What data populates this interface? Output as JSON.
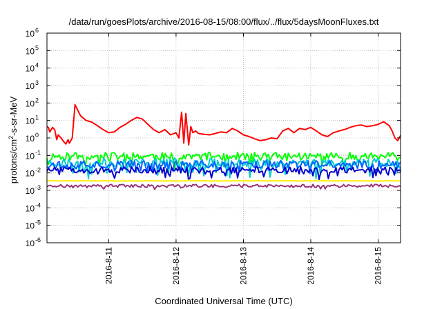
{
  "chart_data": {
    "type": "line",
    "title": "/data/run/goesPlots/archive/2016-08-15/08:00/flux/../flux/5daysMoonFluxes.txt",
    "xlabel": "Coordinated Universal Time (UTC)",
    "ylabel": "protons/cm²-s-sr-MeV",
    "yscale": "log",
    "ylim": [
      1e-06,
      1000000.0
    ],
    "xlim": [
      "2016-08-10 02:00",
      "2016-08-15 08:00"
    ],
    "grid": true,
    "x_ticks": [
      "2016-8-11",
      "2016-8-12",
      "2016-8-13",
      "2016-8-14",
      "2016-8-15"
    ],
    "y_ticks": [
      {
        "base": "10",
        "exp": "-6"
      },
      {
        "base": "10",
        "exp": "-5"
      },
      {
        "base": "10",
        "exp": "-4"
      },
      {
        "base": "10",
        "exp": "-3"
      },
      {
        "base": "10",
        "exp": "-2"
      },
      {
        "base": "10",
        "exp": "-1"
      },
      {
        "base": "10",
        "exp": "0"
      },
      {
        "base": "10",
        "exp": "1"
      },
      {
        "base": "10",
        "exp": "2"
      },
      {
        "base": "10",
        "exp": "3"
      },
      {
        "base": "10",
        "exp": "4"
      },
      {
        "base": "10",
        "exp": "5"
      },
      {
        "base": "10",
        "exp": "6"
      }
    ],
    "series": [
      {
        "color": "#ff0000",
        "style": "smooth",
        "x": [
          "2016-08-10 02:00",
          "2016-08-10 02:30",
          "2016-08-10 03:00",
          "2016-08-10 04:00",
          "2016-08-10 04:45",
          "2016-08-10 05:30",
          "2016-08-10 06:00",
          "2016-08-10 07:00",
          "2016-08-10 08:00",
          "2016-08-10 08:45",
          "2016-08-10 09:30",
          "2016-08-10 10:00",
          "2016-08-10 10:30",
          "2016-08-10 11:00",
          "2016-08-10 12:00",
          "2016-08-10 14:00",
          "2016-08-10 16:00",
          "2016-08-10 18:00",
          "2016-08-10 20:00",
          "2016-08-10 22:00",
          "2016-08-11 00:00",
          "2016-08-11 02:00",
          "2016-08-11 04:00",
          "2016-08-11 06:00",
          "2016-08-11 08:00",
          "2016-08-11 10:00",
          "2016-08-11 12:00",
          "2016-08-11 14:00",
          "2016-08-11 16:00",
          "2016-08-11 18:00",
          "2016-08-11 20:00",
          "2016-08-11 22:00",
          "2016-08-12 00:00",
          "2016-08-12 01:00",
          "2016-08-12 02:00",
          "2016-08-12 02:45",
          "2016-08-12 03:30",
          "2016-08-12 04:30",
          "2016-08-12 05:15",
          "2016-08-12 06:00",
          "2016-08-12 07:00",
          "2016-08-12 08:00",
          "2016-08-12 10:00",
          "2016-08-12 12:00",
          "2016-08-12 14:00",
          "2016-08-12 16:00",
          "2016-08-12 18:00",
          "2016-08-12 20:00",
          "2016-08-12 22:00",
          "2016-08-13 00:00",
          "2016-08-13 02:00",
          "2016-08-13 04:00",
          "2016-08-13 06:00",
          "2016-08-13 08:00",
          "2016-08-13 10:00",
          "2016-08-13 12:00",
          "2016-08-13 14:00",
          "2016-08-13 16:00",
          "2016-08-13 18:00",
          "2016-08-13 20:00",
          "2016-08-13 22:00",
          "2016-08-14 00:00",
          "2016-08-14 02:00",
          "2016-08-14 04:00",
          "2016-08-14 06:00",
          "2016-08-14 08:00",
          "2016-08-14 10:00",
          "2016-08-14 12:00",
          "2016-08-14 14:00",
          "2016-08-14 16:00",
          "2016-08-14 18:00",
          "2016-08-14 20:00",
          "2016-08-14 22:00",
          "2016-08-15 00:00",
          "2016-08-15 02:00",
          "2016-08-15 04:00",
          "2016-08-15 05:00",
          "2016-08-15 06:00",
          "2016-08-15 07:00",
          "2016-08-15 08:00"
        ],
        "y": [
          4.5,
          4.0,
          2.2,
          4.0,
          3.0,
          0.8,
          1.5,
          1.0,
          0.6,
          0.45,
          0.8,
          0.5,
          0.7,
          1.0,
          80.0,
          18.0,
          10.0,
          8.0,
          5.0,
          3.0,
          2.0,
          2.2,
          4.0,
          6.0,
          10.0,
          15.0,
          12.0,
          6.0,
          3.0,
          2.0,
          3.0,
          1.5,
          2.0,
          1.0,
          30.0,
          0.5,
          25.0,
          0.4,
          4.5,
          2.0,
          2.5,
          1.8,
          1.6,
          1.5,
          1.8,
          2.2,
          2.0,
          3.5,
          2.5,
          1.5,
          1.2,
          0.9,
          0.7,
          0.8,
          1.0,
          0.9,
          2.5,
          3.5,
          2.0,
          3.5,
          3.0,
          4.0,
          2.5,
          1.5,
          1.2,
          2.0,
          2.5,
          3.0,
          4.0,
          5.0,
          5.5,
          4.5,
          5.0,
          6.0,
          8.5,
          5.0,
          2.5,
          1.0,
          0.7,
          1.4
        ]
      },
      {
        "color": "#00ff00",
        "style": "jagged",
        "base": 0.09,
        "spread": 0.45,
        "dip": 0.55,
        "seed": 11
      },
      {
        "color": "#00cccc",
        "style": "jagged",
        "base": 0.04,
        "spread": 0.5,
        "dip": 0.8,
        "seed": 23
      },
      {
        "color": "#0066ff",
        "style": "jagged",
        "base": 0.03,
        "spread": 0.45,
        "dip": 0.55,
        "seed": 37
      },
      {
        "color": "#0000cc",
        "style": "jagged",
        "base": 0.015,
        "spread": 0.35,
        "dip": 0.45,
        "seed": 51
      },
      {
        "color": "#ffee00",
        "style": "flat",
        "base": 0.0035,
        "spread": 0.03,
        "dip": 0,
        "seed": 63
      },
      {
        "color": "#993377",
        "style": "jagged",
        "base": 0.0018,
        "spread": 0.18,
        "dip": 0.12,
        "seed": 77
      }
    ]
  }
}
